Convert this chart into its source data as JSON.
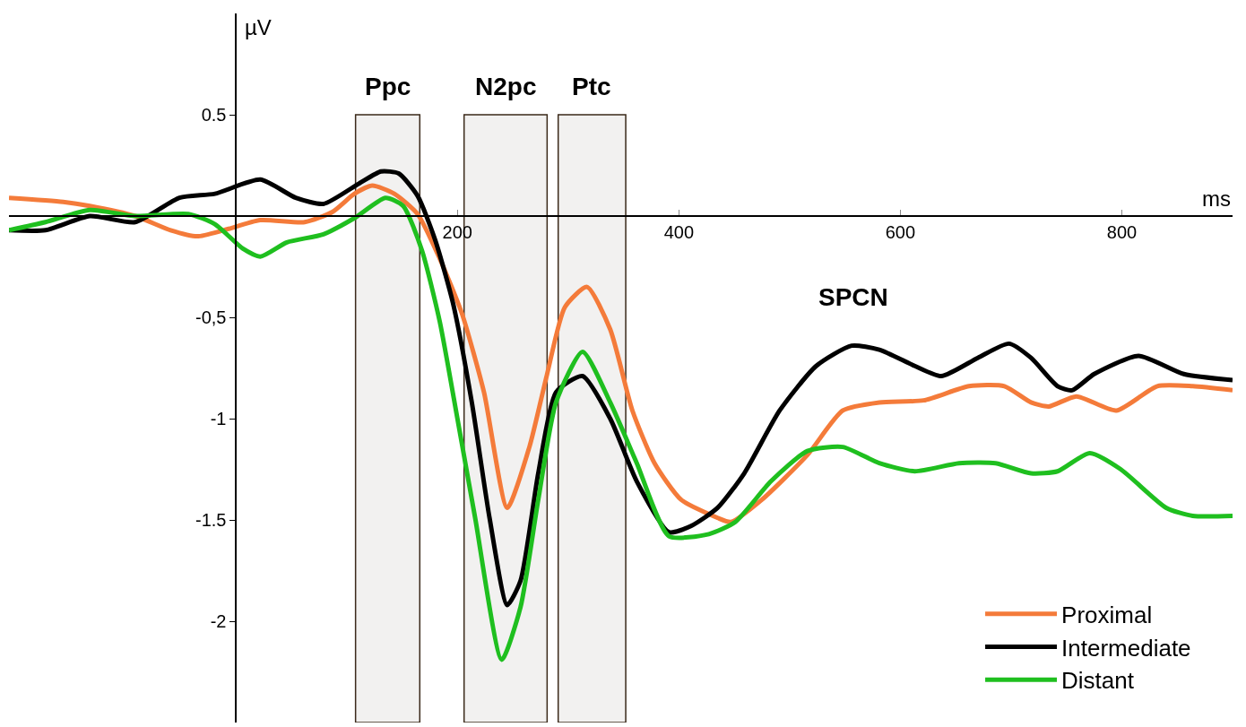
{
  "chart_data": {
    "type": "line",
    "xlabel": "ms",
    "ylabel": "µV",
    "xlim": [
      -205,
      900
    ],
    "ylim": [
      -2.5,
      1.0
    ],
    "xticks": [
      200,
      400,
      600,
      800
    ],
    "yticks": [
      0.5,
      {
        "value": -0.5,
        "label": "-0,5"
      },
      -1,
      -1.5,
      -2
    ],
    "grid": false,
    "legend": "bottom right",
    "marker": "none",
    "line_style": "solid",
    "bands": [
      {
        "axis": "x",
        "from": 108,
        "to": 166,
        "label": "Ppc",
        "color": "#3b2a1a"
      },
      {
        "axis": "x",
        "from": 206,
        "to": 281,
        "label": "N2pc",
        "color": "#3b2a1a"
      },
      {
        "axis": "x",
        "from": 291,
        "to": 352,
        "label": "Ptc",
        "color": "#3b2a1a"
      }
    ],
    "annotations": [
      "SPCN"
    ],
    "series": [
      {
        "name": "Proximal",
        "color": "#f47b3a",
        "x": [
          -205,
          -156,
          -132,
          -91,
          -59,
          -35,
          -11,
          22,
          62,
          87,
          107,
          123,
          143,
          164,
          184,
          204,
          224,
          245,
          265,
          281,
          297,
          317,
          338,
          358,
          378,
          402,
          435,
          447,
          475,
          516,
          548,
          581,
          621,
          662,
          694,
          718,
          734,
          759,
          795,
          832,
          864,
          900
        ],
        "values": [
          0.09,
          0.07,
          0.05,
          0.0,
          -0.07,
          -0.1,
          -0.07,
          -0.02,
          -0.03,
          0.02,
          0.11,
          0.15,
          0.11,
          0.01,
          -0.21,
          -0.48,
          -0.87,
          -1.44,
          -1.14,
          -0.78,
          -0.45,
          -0.35,
          -0.56,
          -0.96,
          -1.22,
          -1.4,
          -1.49,
          -1.51,
          -1.4,
          -1.18,
          -0.96,
          -0.92,
          -0.91,
          -0.84,
          -0.84,
          -0.92,
          -0.94,
          -0.89,
          -0.96,
          -0.84,
          -0.84,
          -0.86
        ]
      },
      {
        "name": "Intermediate",
        "color": "#000000",
        "x": [
          -205,
          -172,
          -132,
          -91,
          -51,
          -19,
          22,
          54,
          79,
          111,
          131,
          147,
          164,
          180,
          196,
          213,
          229,
          245,
          257,
          273,
          289,
          313,
          338,
          362,
          391,
          411,
          435,
          459,
          491,
          524,
          556,
          581,
          613,
          637,
          670,
          698,
          718,
          742,
          755,
          775,
          815,
          856,
          900
        ],
        "values": [
          -0.07,
          -0.07,
          0.0,
          -0.03,
          0.09,
          0.11,
          0.18,
          0.09,
          0.06,
          0.16,
          0.22,
          0.21,
          0.1,
          -0.12,
          -0.43,
          -0.92,
          -1.49,
          -1.92,
          -1.8,
          -1.27,
          -0.87,
          -0.79,
          -1.0,
          -1.31,
          -1.56,
          -1.53,
          -1.44,
          -1.27,
          -0.96,
          -0.74,
          -0.64,
          -0.66,
          -0.74,
          -0.79,
          -0.7,
          -0.63,
          -0.7,
          -0.84,
          -0.86,
          -0.78,
          -0.69,
          -0.78,
          -0.81
        ]
      },
      {
        "name": "Distant",
        "color": "#1fbf1f",
        "x": [
          -205,
          -172,
          -132,
          -91,
          -43,
          -19,
          6,
          22,
          46,
          79,
          107,
          135,
          151,
          168,
          184,
          200,
          216,
          240,
          257,
          273,
          289,
          313,
          338,
          362,
          391,
          427,
          451,
          483,
          516,
          548,
          581,
          613,
          653,
          686,
          718,
          742,
          771,
          799,
          840,
          864,
          900
        ],
        "values": [
          -0.07,
          -0.03,
          0.03,
          0.0,
          0.01,
          -0.04,
          -0.16,
          -0.2,
          -0.13,
          -0.09,
          -0.01,
          0.09,
          0.05,
          -0.17,
          -0.52,
          -1.0,
          -1.49,
          -2.19,
          -1.93,
          -1.4,
          -0.92,
          -0.67,
          -0.92,
          -1.22,
          -1.58,
          -1.57,
          -1.51,
          -1.31,
          -1.16,
          -1.14,
          -1.22,
          -1.26,
          -1.22,
          -1.22,
          -1.27,
          -1.26,
          -1.17,
          -1.25,
          -1.44,
          -1.48,
          -1.48
        ]
      }
    ]
  }
}
